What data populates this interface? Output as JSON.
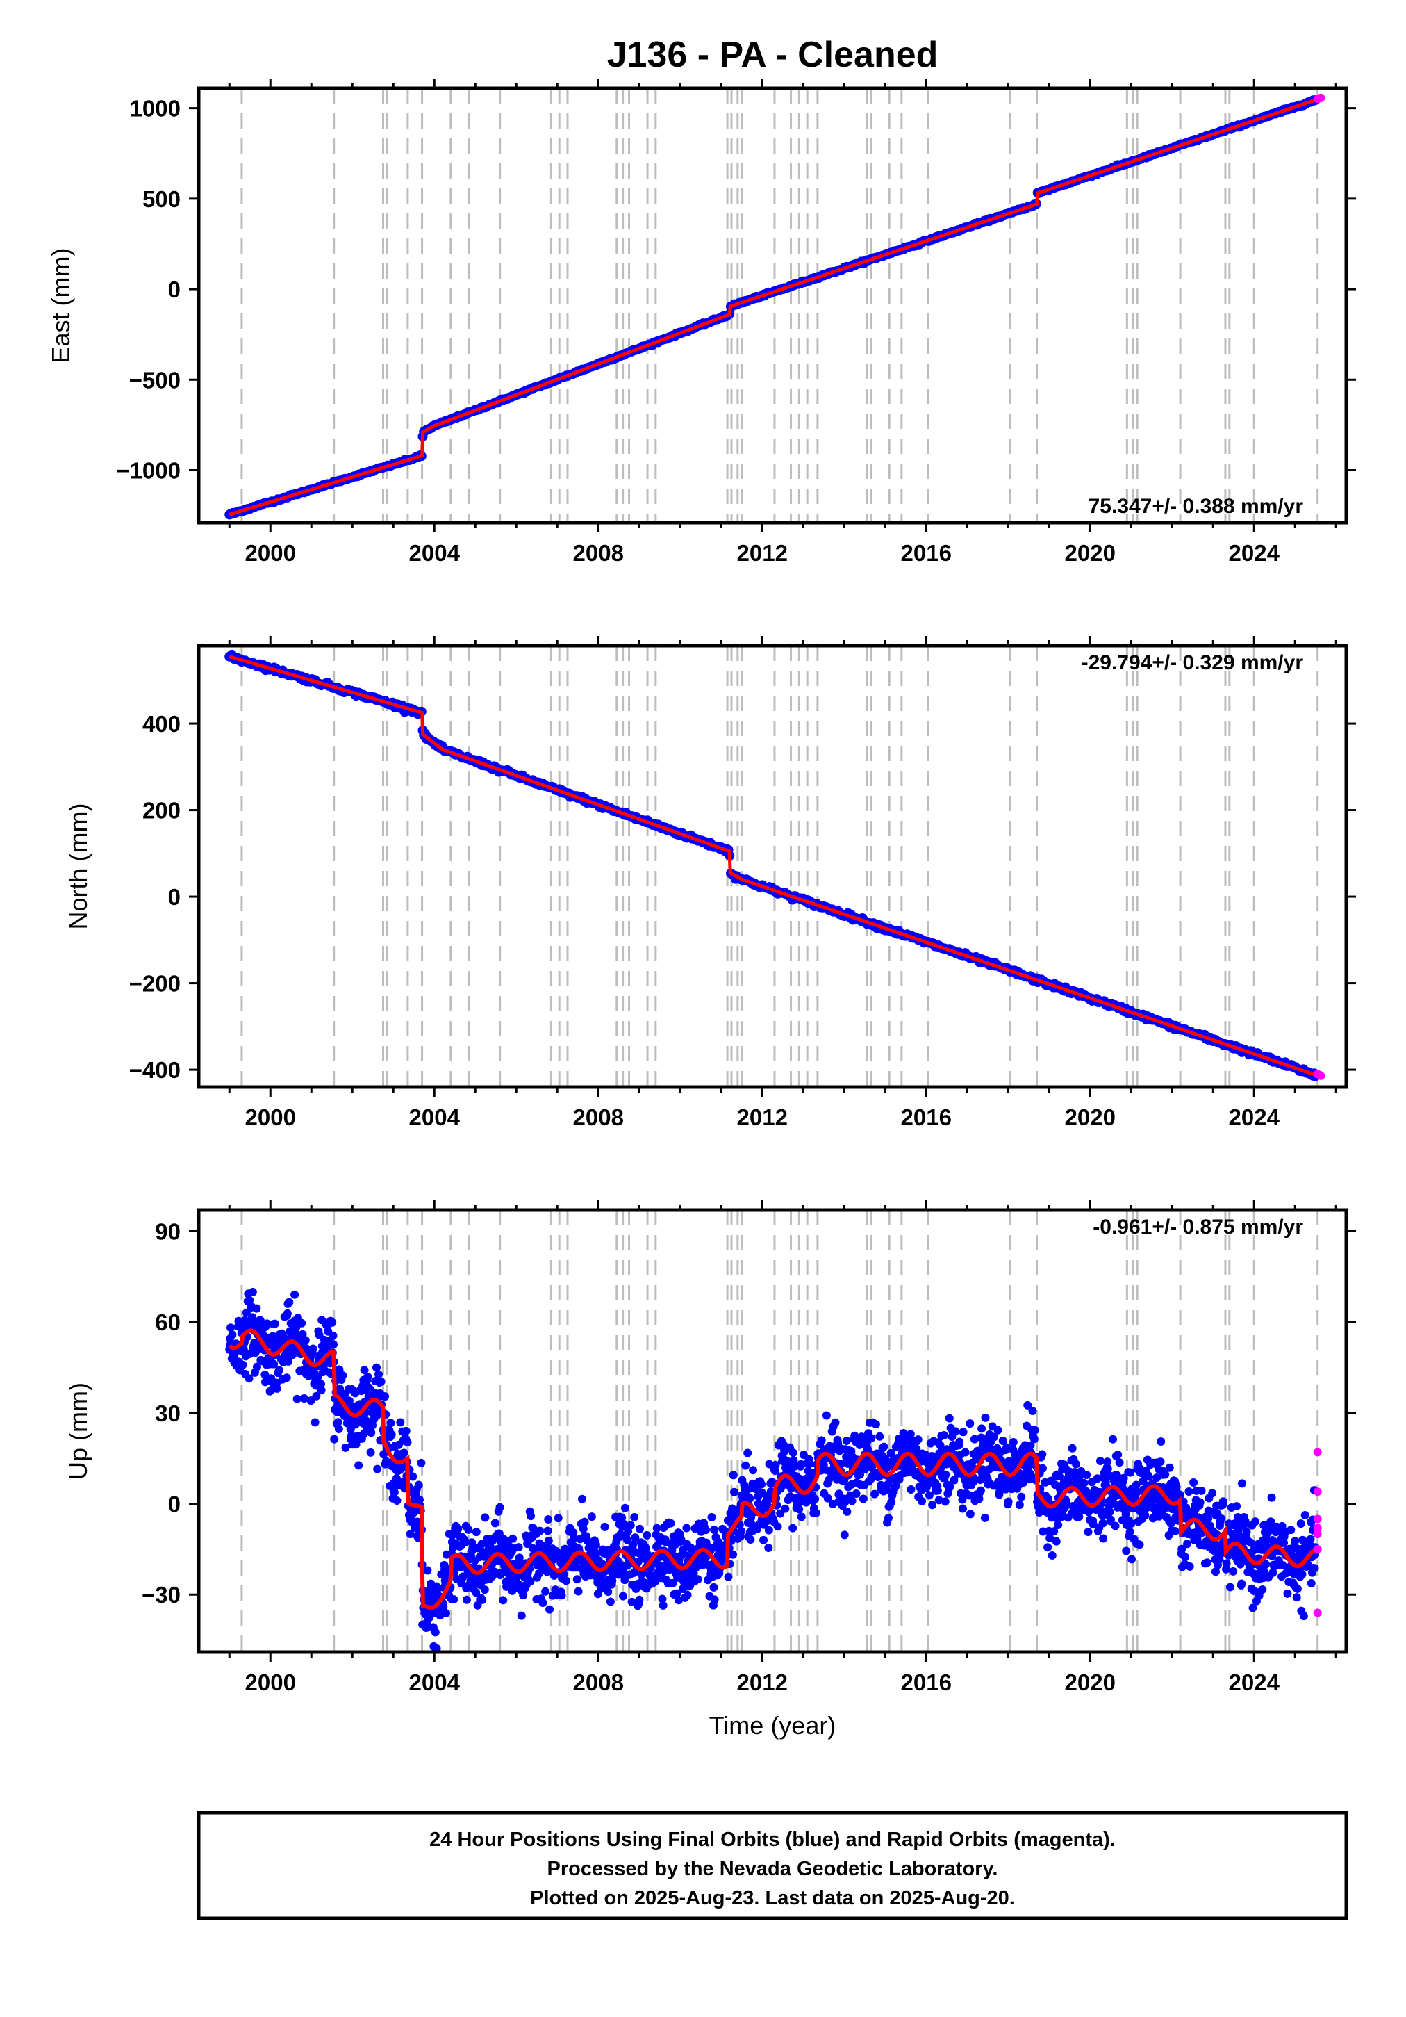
{
  "title": "J136  - PA - Cleaned",
  "colors": {
    "final": "#0000ff",
    "rapid": "#ff00ff",
    "model": "#ff0000",
    "event_line": "#bdbdbd"
  },
  "chart_data": [
    {
      "type": "scatter",
      "panel": "east",
      "ylabel": "East (mm)",
      "xlabel": "",
      "xlim": [
        1998.25,
        2026.25
      ],
      "ylim": [
        -1290,
        1110
      ],
      "x_ticks": [
        2000,
        2004,
        2008,
        2012,
        2016,
        2020,
        2024
      ],
      "y_ticks": [
        -1000,
        -500,
        0,
        500,
        1000
      ],
      "y_tick_labels": [
        "−1000",
        "−500",
        "0",
        "500",
        "1000"
      ],
      "rate_label": "75.347+/- 0.388 mm/yr",
      "event_lines": [
        1999.3,
        2001.55,
        2002.75,
        2002.85,
        2003.35,
        2003.7,
        2004.4,
        2004.85,
        2005.6,
        2006.85,
        2007.05,
        2007.25,
        2008.45,
        2008.6,
        2008.75,
        2009.2,
        2009.4,
        2011.15,
        2011.25,
        2011.4,
        2011.5,
        2012.3,
        2012.7,
        2012.9,
        2013.1,
        2013.35,
        2014.55,
        2014.65,
        2015.1,
        2015.4,
        2016.05,
        2018.05,
        2018.7,
        2020.9,
        2021.05,
        2021.15,
        2022.2,
        2023.3,
        2023.4,
        2024.0,
        2025.55
      ],
      "series": [
        {
          "role": "final",
          "x": [
            1999.0,
            2003.7,
            2003.72,
            2004.0,
            2011.2,
            2011.22,
            2018.7,
            2018.72,
            2025.5
          ],
          "y": [
            -1245,
            -920,
            -790,
            -755,
            -140,
            -95,
            470,
            530,
            1045
          ]
        },
        {
          "role": "rapid",
          "x": [
            2025.55,
            2025.6,
            2025.63
          ],
          "y": [
            1052,
            1055,
            1057
          ]
        }
      ]
    },
    {
      "type": "scatter",
      "panel": "north",
      "ylabel": "North (mm)",
      "xlabel": "",
      "xlim": [
        1998.25,
        2026.25
      ],
      "ylim": [
        -440,
        580
      ],
      "x_ticks": [
        2000,
        2004,
        2008,
        2012,
        2016,
        2020,
        2024
      ],
      "y_ticks": [
        -400,
        -200,
        0,
        200,
        400
      ],
      "y_tick_labels": [
        "−400",
        "−200",
        "0",
        "200",
        "400"
      ],
      "rate_label": "-29.794+/- 0.329 mm/yr",
      "event_lines": [
        1999.3,
        2001.55,
        2002.75,
        2002.85,
        2003.35,
        2003.7,
        2004.4,
        2004.85,
        2005.6,
        2006.85,
        2007.05,
        2007.25,
        2008.45,
        2008.6,
        2008.75,
        2009.2,
        2009.4,
        2011.15,
        2011.25,
        2011.4,
        2011.5,
        2012.3,
        2012.7,
        2012.9,
        2013.1,
        2013.35,
        2014.55,
        2014.65,
        2015.1,
        2015.4,
        2016.05,
        2018.05,
        2018.7,
        2020.9,
        2021.05,
        2021.15,
        2022.2,
        2023.3,
        2023.4,
        2024.0,
        2025.55
      ],
      "series": [
        {
          "role": "final",
          "x": [
            1999.0,
            2003.7,
            2003.72,
            2004.2,
            2011.2,
            2011.22,
            2011.5,
            2025.5
          ],
          "y": [
            555,
            425,
            375,
            340,
            105,
            55,
            40,
            -412
          ]
        },
        {
          "role": "rapid",
          "x": [
            2025.55,
            2025.6,
            2025.63
          ],
          "y": [
            -410,
            -412,
            -414
          ]
        }
      ]
    },
    {
      "type": "scatter",
      "panel": "up",
      "ylabel": "Up (mm)",
      "xlabel": "Time (year)",
      "xlim": [
        1998.25,
        2026.25
      ],
      "ylim": [
        -49,
        97
      ],
      "x_ticks": [
        2000,
        2004,
        2008,
        2012,
        2016,
        2020,
        2024
      ],
      "y_ticks": [
        -30,
        0,
        30,
        60,
        90
      ],
      "y_tick_labels": [
        "−30",
        "0",
        "30",
        "60",
        "90"
      ],
      "rate_label": "-0.961+/- 0.875 mm/yr",
      "event_lines": [
        1999.3,
        2001.55,
        2002.75,
        2002.85,
        2003.35,
        2003.7,
        2004.4,
        2004.85,
        2005.6,
        2006.85,
        2007.05,
        2007.25,
        2008.45,
        2008.6,
        2008.75,
        2009.2,
        2009.4,
        2011.15,
        2011.25,
        2011.4,
        2011.5,
        2012.3,
        2012.7,
        2012.9,
        2013.1,
        2013.35,
        2014.55,
        2014.65,
        2015.1,
        2015.4,
        2016.05,
        2018.05,
        2018.7,
        2020.9,
        2021.05,
        2021.15,
        2022.2,
        2023.3,
        2023.4,
        2024.0,
        2025.55
      ],
      "series": [
        {
          "role": "model",
          "x": [
            1999.0,
            1999.3,
            1999.31,
            2001.55,
            2001.56,
            2002.75,
            2002.76,
            2003.35,
            2003.36,
            2003.7,
            2003.71,
            2004.4,
            2004.41,
            2011.15,
            2011.16,
            2011.5,
            2011.51,
            2012.3,
            2012.31,
            2013.35,
            2013.36,
            2018.7,
            2018.71,
            2022.2,
            2022.21,
            2023.3,
            2023.31,
            2025.5
          ],
          "y": [
            55,
            53,
            55,
            47,
            33,
            31,
            20,
            14,
            0,
            -1,
            -35,
            -27,
            -20,
            -18,
            -8,
            -7,
            -3,
            0,
            5,
            8,
            13,
            13,
            2,
            3,
            -8,
            -9,
            -16,
            -18
          ],
          "seasonal_amplitude": [
            3,
            3,
            3,
            3,
            3,
            3,
            3,
            3,
            0,
            0,
            2.5,
            2.5,
            3,
            3,
            3,
            3,
            3,
            3,
            3.5,
            3.5,
            3.5,
            3.5,
            3,
            3,
            3,
            3,
            3,
            3
          ]
        },
        {
          "role": "final",
          "x": [
            1999.0,
            2003.7,
            2003.72,
            2011.2,
            2011.22,
            2013.4,
            2018.7,
            2018.72,
            2022.3,
            2023.3,
            2025.5
          ],
          "y": [
            55,
            0,
            -30,
            -20,
            -8,
            10,
            12,
            2,
            2,
            -10,
            -18
          ],
          "scatter_sd_mm": 6
        },
        {
          "role": "rapid",
          "x": [
            2025.55,
            2025.55,
            2025.55,
            2025.55,
            2025.55,
            2025.55,
            2025.55
          ],
          "y": [
            17,
            4,
            -5,
            -8,
            -10,
            -15,
            -36
          ]
        }
      ]
    }
  ],
  "footer": {
    "line1": "24 Hour Positions Using Final Orbits (blue) and Rapid Orbits (magenta).",
    "line2": "Processed by the Nevada Geodetic Laboratory.",
    "line3": "Plotted on 2025-Aug-23. Last data on 2025-Aug-20."
  }
}
